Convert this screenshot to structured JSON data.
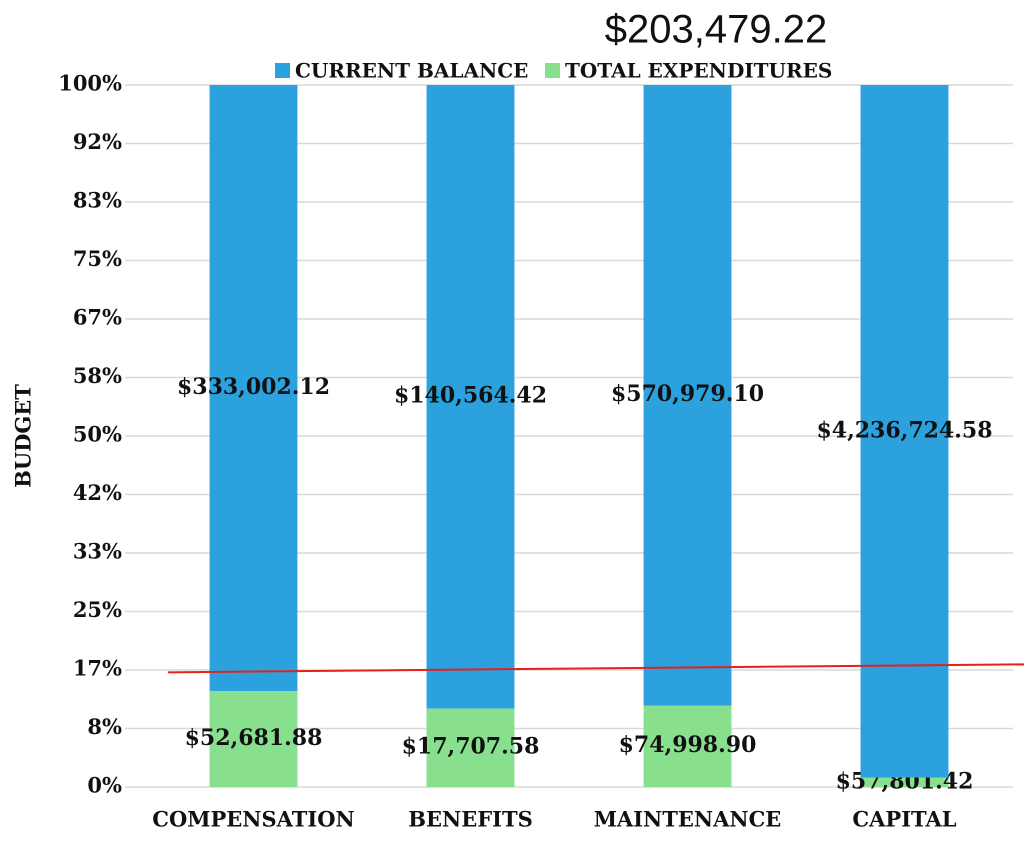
{
  "chart_data": {
    "type": "bar",
    "stacking": "percent",
    "title": "$203,479.22",
    "y_label": "BUDGET",
    "categories": [
      "COMPENSATION",
      "BENEFITS",
      "MAINTENANCE",
      "CAPITAL"
    ],
    "series": [
      {
        "name": "CURRENT BALANCE",
        "color": "#2ba2de",
        "values": [
          333002.12,
          140564.42,
          570979.1,
          4236724.58
        ],
        "value_labels": [
          "$333,002.12",
          "$140,564.42",
          "$570,979.10",
          "$4,236,724.58"
        ]
      },
      {
        "name": "TOTAL EXPENDITURES",
        "color": "#88e08f",
        "values": [
          52681.88,
          17707.58,
          74998.9,
          57801.42
        ],
        "value_labels": [
          "$52,681.88",
          "$17,707.58",
          "$74,998.90",
          "$57,801.42"
        ]
      }
    ],
    "ylim": [
      0,
      100
    ],
    "yticks": [
      {
        "value": 0,
        "label": "0%"
      },
      {
        "value": 8.333,
        "label": "8%"
      },
      {
        "value": 16.667,
        "label": "17%"
      },
      {
        "value": 25,
        "label": "25%"
      },
      {
        "value": 33.333,
        "label": "33%"
      },
      {
        "value": 41.667,
        "label": "42%"
      },
      {
        "value": 50,
        "label": "50%"
      },
      {
        "value": 58.333,
        "label": "58%"
      },
      {
        "value": 66.667,
        "label": "67%"
      },
      {
        "value": 75,
        "label": "75%"
      },
      {
        "value": 83.333,
        "label": "83%"
      },
      {
        "value": 91.667,
        "label": "92%"
      },
      {
        "value": 100,
        "label": "100%"
      }
    ],
    "grid": true,
    "legend": "top",
    "reference_line": {
      "value": 16.9,
      "color": "#e8201c"
    }
  }
}
